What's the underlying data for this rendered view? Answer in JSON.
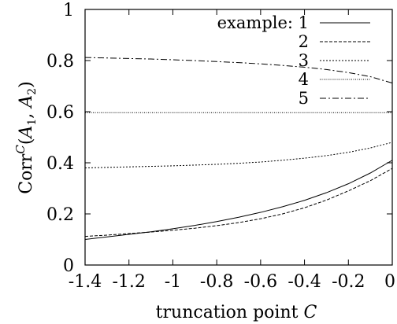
{
  "chart_data": {
    "type": "line",
    "xlabel": "truncation point C",
    "ylabel": "Corr^C(A1, A2)",
    "xlim": [
      -1.4,
      0
    ],
    "ylim": [
      0,
      1
    ],
    "x_ticks": [
      -1.4,
      -1.2,
      -1,
      -0.8,
      -0.6,
      -0.4,
      -0.2,
      0
    ],
    "x_tick_labels": [
      "-1.4",
      "-1.2",
      "-1",
      "-0.8",
      "-0.6",
      "-0.4",
      "-0.2",
      "0"
    ],
    "y_ticks": [
      0,
      0.2,
      0.4,
      0.6,
      0.8,
      1
    ],
    "y_tick_labels": [
      "0",
      "0.2",
      "0.4",
      "0.6",
      "0.8",
      "1"
    ],
    "grid": false,
    "legend": {
      "title": "example:",
      "position": "top-right"
    },
    "series": [
      {
        "name": "1",
        "dash": "solid",
        "x": [
          -1.4,
          -1.3,
          -1.2,
          -1.1,
          -1.0,
          -0.9,
          -0.8,
          -0.7,
          -0.6,
          -0.5,
          -0.4,
          -0.3,
          -0.2,
          -0.1,
          0
        ],
        "y": [
          0.1,
          0.11,
          0.12,
          0.13,
          0.142,
          0.155,
          0.17,
          0.187,
          0.206,
          0.228,
          0.253,
          0.283,
          0.318,
          0.36,
          0.41
        ]
      },
      {
        "name": "2",
        "dash": "dashed",
        "x": [
          -1.4,
          -1.3,
          -1.2,
          -1.1,
          -1.0,
          -0.9,
          -0.8,
          -0.7,
          -0.6,
          -0.5,
          -0.4,
          -0.3,
          -0.2,
          -0.1,
          0
        ],
        "y": [
          0.112,
          0.117,
          0.123,
          0.129,
          0.136,
          0.144,
          0.154,
          0.166,
          0.181,
          0.2,
          0.224,
          0.254,
          0.29,
          0.33,
          0.378
        ]
      },
      {
        "name": "3",
        "dash": "dotted",
        "x": [
          -1.4,
          -1.3,
          -1.2,
          -1.1,
          -1.0,
          -0.9,
          -0.8,
          -0.7,
          -0.6,
          -0.5,
          -0.4,
          -0.3,
          -0.2,
          -0.1,
          0
        ],
        "y": [
          0.38,
          0.382,
          0.384,
          0.386,
          0.388,
          0.391,
          0.394,
          0.398,
          0.403,
          0.41,
          0.418,
          0.428,
          0.441,
          0.458,
          0.48
        ]
      },
      {
        "name": "4",
        "dash": "fine-dotted",
        "x": [
          -1.4,
          0
        ],
        "y": [
          0.596,
          0.596
        ]
      },
      {
        "name": "5",
        "dash": "dash-dot",
        "x": [
          -1.4,
          -1.3,
          -1.2,
          -1.1,
          -1.0,
          -0.9,
          -0.8,
          -0.7,
          -0.6,
          -0.5,
          -0.4,
          -0.3,
          -0.2,
          -0.1,
          0
        ],
        "y": [
          0.812,
          0.81,
          0.808,
          0.806,
          0.803,
          0.8,
          0.796,
          0.792,
          0.787,
          0.781,
          0.774,
          0.765,
          0.753,
          0.737,
          0.712
        ]
      }
    ]
  }
}
